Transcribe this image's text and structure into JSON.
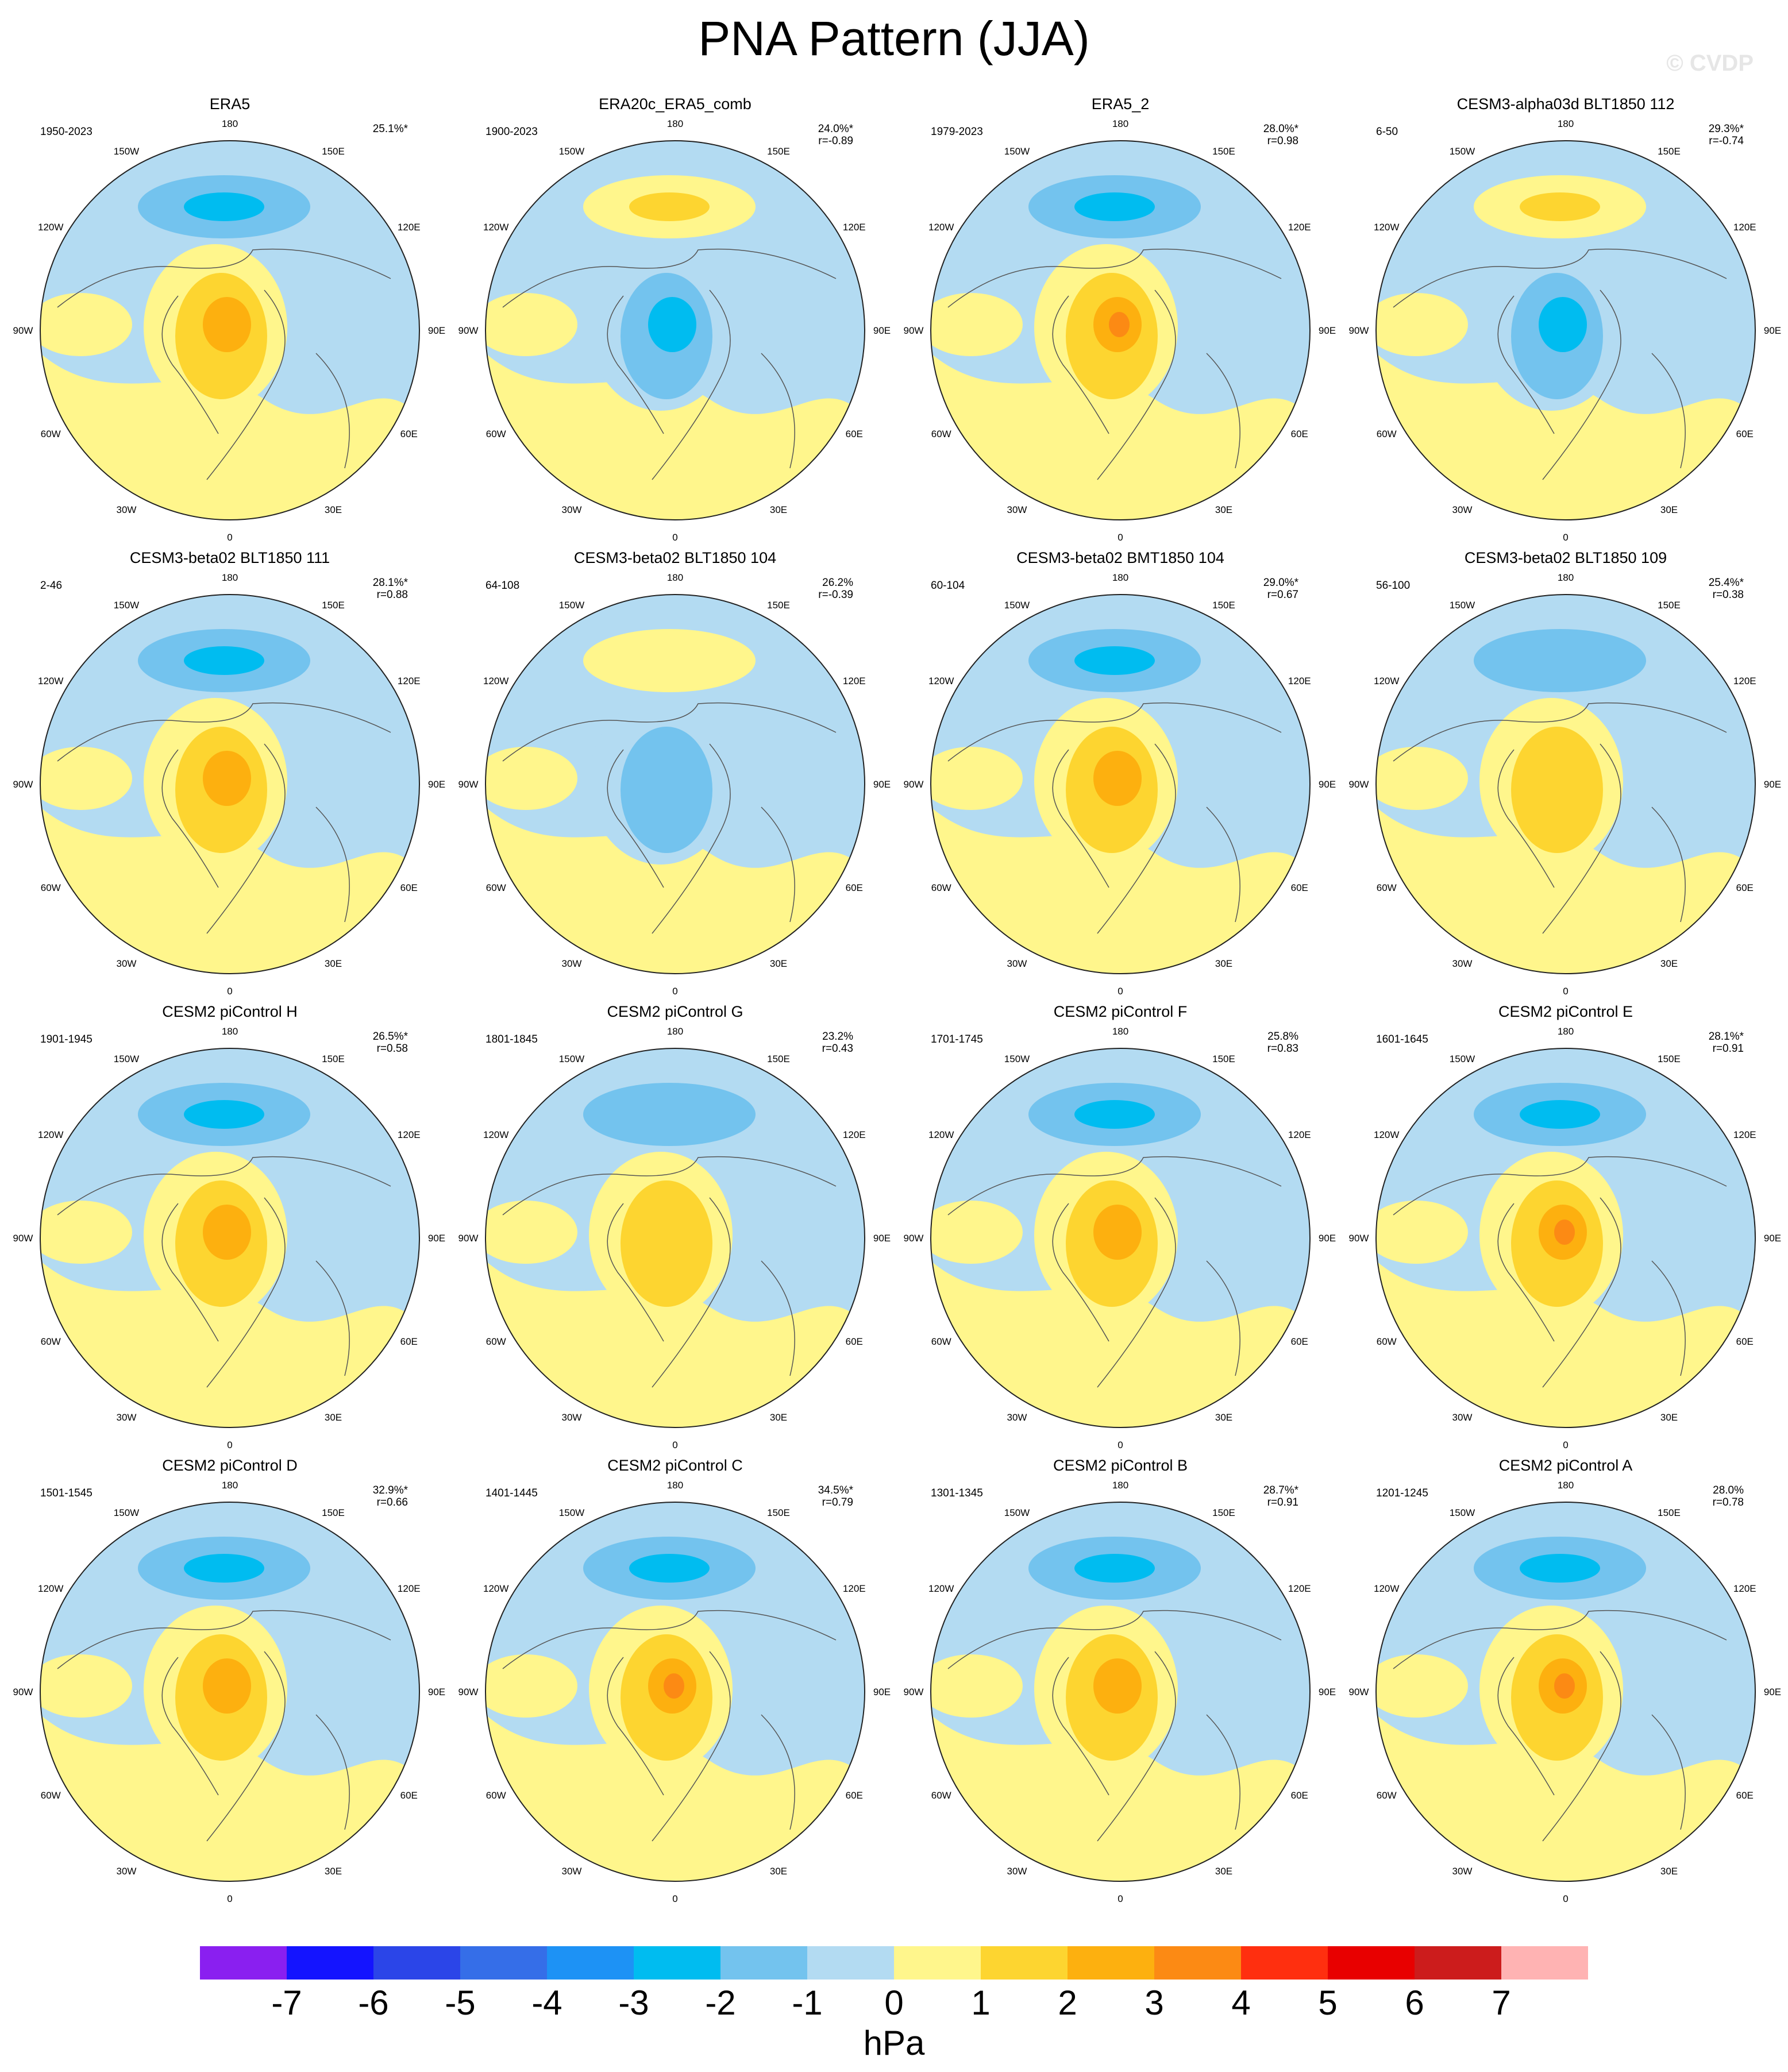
{
  "title": "PNA Pattern (JJA)",
  "watermark": "© CVDP",
  "colors": {
    "neg1": "#b3dbf2",
    "neg2": "#73c3ee",
    "neg3": "#00bcf0",
    "pos1": "#fff68c",
    "pos2": "#fdd530",
    "pos3": "#fdb00f",
    "pos4": "#fc8a14"
  },
  "longitude_labels": [
    "180",
    "150E",
    "120E",
    "90E",
    "60E",
    "30E",
    "0",
    "30W",
    "60W",
    "90W",
    "120W",
    "150W"
  ],
  "panels": [
    {
      "name": "ERA5",
      "period": "1950-2023",
      "pct": "25.1%*",
      "r": "",
      "polar_sign": 1,
      "strength": 3
    },
    {
      "name": "ERA20c_ERA5_comb",
      "period": "1900-2023",
      "pct": "24.0%*",
      "r": "r=-0.89",
      "polar_sign": -1,
      "strength": 3
    },
    {
      "name": "ERA5_2",
      "period": "1979-2023",
      "pct": "28.0%*",
      "r": "r=0.98",
      "polar_sign": 1,
      "strength": 4
    },
    {
      "name": "CESM3-alpha03d BLT1850 112",
      "period": "6-50",
      "pct": "29.3%*",
      "r": "r=-0.74",
      "polar_sign": -1,
      "strength": 3
    },
    {
      "name": "CESM3-beta02 BLT1850 111",
      "period": "2-46",
      "pct": "28.1%*",
      "r": "r=0.88",
      "polar_sign": 1,
      "strength": 3
    },
    {
      "name": "CESM3-beta02 BLT1850 104",
      "period": "64-108",
      "pct": "26.2%",
      "r": "r=-0.39",
      "polar_sign": -1,
      "strength": 2
    },
    {
      "name": "CESM3-beta02 BMT1850 104",
      "period": "60-104",
      "pct": "29.0%*",
      "r": "r=0.67",
      "polar_sign": 1,
      "strength": 3
    },
    {
      "name": "CESM3-beta02 BLT1850 109",
      "period": "56-100",
      "pct": "25.4%*",
      "r": "r=0.38",
      "polar_sign": 1,
      "strength": 2
    },
    {
      "name": "CESM2 piControl H",
      "period": "1901-1945",
      "pct": "26.5%*",
      "r": "r=0.58",
      "polar_sign": 1,
      "strength": 3
    },
    {
      "name": "CESM2 piControl G",
      "period": "1801-1845",
      "pct": "23.2%",
      "r": "r=0.43",
      "polar_sign": 1,
      "strength": 2
    },
    {
      "name": "CESM2 piControl F",
      "period": "1701-1745",
      "pct": "25.8%",
      "r": "r=0.83",
      "polar_sign": 1,
      "strength": 3
    },
    {
      "name": "CESM2 piControl E",
      "period": "1601-1645",
      "pct": "28.1%*",
      "r": "r=0.91",
      "polar_sign": 1,
      "strength": 4
    },
    {
      "name": "CESM2 piControl D",
      "period": "1501-1545",
      "pct": "32.9%*",
      "r": "r=0.66",
      "polar_sign": 1,
      "strength": 3
    },
    {
      "name": "CESM2 piControl C",
      "period": "1401-1445",
      "pct": "34.5%*",
      "r": "r=0.79",
      "polar_sign": 1,
      "strength": 4
    },
    {
      "name": "CESM2 piControl B",
      "period": "1301-1345",
      "pct": "28.7%*",
      "r": "r=0.91",
      "polar_sign": 1,
      "strength": 3
    },
    {
      "name": "CESM2 piControl A",
      "period": "1201-1245",
      "pct": "28.0%",
      "r": "r=0.78",
      "polar_sign": 1,
      "strength": 4
    }
  ],
  "colorbar": {
    "colors": [
      "#8a1ff0",
      "#1414ff",
      "#2b45e8",
      "#356ee8",
      "#1d92f5",
      "#00bcf0",
      "#73c3ee",
      "#b3dbf2",
      "#fff68c",
      "#fdd530",
      "#fdb00f",
      "#fc8a14",
      "#ff2f0f",
      "#e80000",
      "#cc1c1c",
      "#ffb3b3"
    ],
    "labels": [
      "-7",
      "-6",
      "-5",
      "-4",
      "-3",
      "-2",
      "-1",
      "0",
      "1",
      "2",
      "3",
      "4",
      "5",
      "6",
      "7"
    ],
    "unit": "hPa"
  }
}
